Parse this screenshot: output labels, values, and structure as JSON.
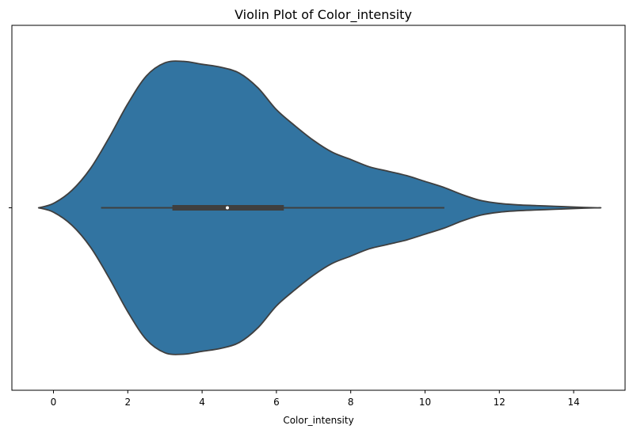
{
  "chart_data": {
    "type": "violin",
    "title": "Violin Plot of Color_intensity",
    "xlabel": "Color_intensity",
    "ylabel": "",
    "xlim": [
      -0.4,
      15.0
    ],
    "x_ticks": [
      "0",
      "2",
      "4",
      "6",
      "8",
      "10",
      "12",
      "14"
    ],
    "y_ticks": [
      ""
    ],
    "grid": false,
    "colors": {
      "body": "#3274a1",
      "edge": "#3f3f3f",
      "box": "#3f3f3f",
      "median": "#ffffff"
    },
    "density": {
      "x": [
        -0.4,
        0.0,
        0.5,
        1.0,
        1.5,
        2.0,
        2.5,
        3.0,
        3.5,
        4.0,
        4.5,
        5.0,
        5.5,
        6.0,
        6.5,
        7.0,
        7.5,
        8.0,
        8.5,
        9.0,
        9.5,
        10.0,
        10.5,
        11.0,
        11.5,
        12.0,
        12.5,
        13.0,
        13.5,
        14.0,
        14.65
      ],
      "width": [
        0.0,
        0.03,
        0.12,
        0.27,
        0.48,
        0.71,
        0.9,
        0.99,
        1.0,
        0.98,
        0.96,
        0.92,
        0.82,
        0.67,
        0.56,
        0.46,
        0.38,
        0.33,
        0.28,
        0.25,
        0.22,
        0.18,
        0.14,
        0.09,
        0.05,
        0.03,
        0.02,
        0.015,
        0.01,
        0.005,
        0.0
      ]
    },
    "box": {
      "whisker_low": 1.28,
      "q1": 3.2,
      "median": 4.68,
      "q3": 6.2,
      "whisker_high": 10.52
    }
  }
}
